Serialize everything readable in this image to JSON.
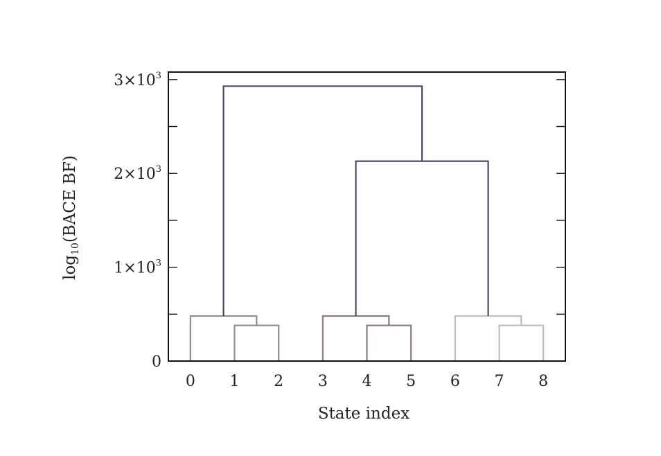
{
  "chart_data": {
    "type": "dendrogram",
    "title": "",
    "xlabel": "State index",
    "ylabel_main": "log",
    "ylabel_sub": "10",
    "ylabel_rest": "(BACE BF)",
    "x_ticks": [
      "0",
      "1",
      "2",
      "3",
      "4",
      "5",
      "6",
      "7",
      "8"
    ],
    "y_ticks": [
      {
        "value": 0,
        "base": "0",
        "exp": ""
      },
      {
        "value": 1000,
        "base": "1×10",
        "exp": "3"
      },
      {
        "value": 2000,
        "base": "2×10",
        "exp": "3"
      },
      {
        "value": 3000,
        "base": "3×10",
        "exp": "3"
      }
    ],
    "ylim": [
      0,
      3080
    ],
    "xlim": [
      -0.5,
      8.5
    ],
    "links": [
      {
        "left": 1,
        "right": 2,
        "height": 380,
        "color": "#8e8e8e"
      },
      {
        "left": 0,
        "right": 1.5,
        "height": 480,
        "color": "#8e8e8e"
      },
      {
        "left": 4,
        "right": 5,
        "height": 380,
        "color": "#8a7a7c"
      },
      {
        "left": 3,
        "right": 4.5,
        "height": 480,
        "color": "#8a7a7c"
      },
      {
        "left": 7,
        "right": 8,
        "height": 380,
        "color": "#bdbdbd"
      },
      {
        "left": 6,
        "right": 7.5,
        "height": 480,
        "color": "#bdbdbd"
      },
      {
        "left": 3.75,
        "right": 6.75,
        "height": 2130,
        "color": "#4a4a66"
      },
      {
        "left": 0.75,
        "right": 5.25,
        "height": 2930,
        "color": "#4a4a66"
      }
    ],
    "child_heights": [
      {
        "l": 0,
        "r": 0
      },
      {
        "l": 0,
        "r": 380
      },
      {
        "l": 0,
        "r": 0
      },
      {
        "l": 0,
        "r": 380
      },
      {
        "l": 0,
        "r": 0
      },
      {
        "l": 0,
        "r": 380
      },
      {
        "l": 480,
        "r": 480
      },
      {
        "l": 480,
        "r": 2130
      }
    ],
    "grid": false,
    "legend": "none"
  }
}
